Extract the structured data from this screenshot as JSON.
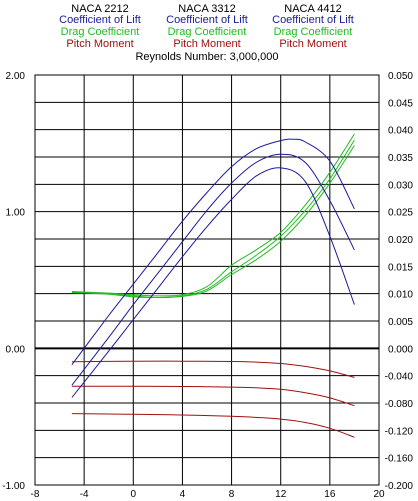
{
  "chart_data": {
    "type": "line",
    "subtitle": "Reynolds Number: 3,000,000",
    "legend_groups": [
      {
        "name": "NACA 2212",
        "entries": [
          "Coefficient of Lift",
          "Drag Coefficient",
          "Pitch Moment"
        ]
      },
      {
        "name": "NACA 3312",
        "entries": [
          "Coefficient of Lift",
          "Drag Coefficient",
          "Pitch Moment"
        ]
      },
      {
        "name": "NACA 4412",
        "entries": [
          "Coefficient of Lift",
          "Drag Coefficient",
          "Pitch Moment"
        ]
      }
    ],
    "colors": {
      "lift": "#1a1a9c",
      "drag": "#22bb22",
      "moment": "#a01010"
    },
    "x_axis": {
      "range": [
        -8,
        20
      ],
      "ticks": [
        "-8",
        "-4",
        "0",
        "4",
        "8",
        "12",
        "16",
        "20"
      ]
    },
    "y_left": {
      "range": [
        -1.0,
        2.0
      ],
      "ticks": [
        "2.00",
        "1.00",
        "0.00",
        "-1.00"
      ]
    },
    "y_right_top": {
      "range": [
        0,
        0.05
      ],
      "ticks": [
        "0.050",
        "0.045",
        "0.040",
        "0.035",
        "0.030",
        "0.025",
        "0.020",
        "0.015",
        "0.010",
        "0.005",
        "0.000"
      ]
    },
    "y_right_bottom": {
      "range": [
        -0.2,
        0
      ],
      "ticks": [
        "-0.040",
        "-0.080",
        "-0.120",
        "-0.160",
        "-0.200"
      ]
    },
    "lift_series": [
      {
        "group": "NACA 2212",
        "x": [
          -5,
          -2,
          0,
          2,
          4,
          6,
          8,
          10,
          12,
          14,
          16,
          18
        ],
        "y": [
          -0.36,
          -0.02,
          0.21,
          0.44,
          0.67,
          0.89,
          1.09,
          1.26,
          1.32,
          1.22,
          0.82,
          0.32
        ]
      },
      {
        "group": "NACA 3312",
        "x": [
          -5,
          -2,
          0,
          2,
          4,
          6,
          8,
          10,
          12,
          14,
          16,
          18
        ],
        "y": [
          -0.27,
          0.08,
          0.32,
          0.55,
          0.78,
          1.01,
          1.21,
          1.36,
          1.42,
          1.36,
          1.08,
          0.72
        ]
      },
      {
        "group": "NACA 4412",
        "x": [
          -5,
          -2,
          0,
          2,
          4,
          6,
          8,
          10,
          12,
          13,
          14,
          16,
          18
        ],
        "y": [
          -0.12,
          0.24,
          0.47,
          0.7,
          0.93,
          1.14,
          1.33,
          1.46,
          1.52,
          1.53,
          1.51,
          1.37,
          1.02
        ]
      }
    ],
    "drag_series": [
      {
        "group": "NACA 2212",
        "x": [
          -5,
          -2,
          0,
          2,
          4,
          6,
          8,
          10,
          12,
          14,
          16,
          18
        ],
        "y": [
          0.0102,
          0.0099,
          0.0094,
          0.0093,
          0.0095,
          0.0105,
          0.0135,
          0.0162,
          0.0196,
          0.0243,
          0.0302,
          0.0371
        ]
      },
      {
        "group": "NACA 3312",
        "x": [
          -5,
          -2,
          0,
          2,
          4,
          6,
          8,
          10,
          12,
          14,
          16,
          18
        ],
        "y": [
          0.0103,
          0.01,
          0.0096,
          0.0093,
          0.0096,
          0.0108,
          0.014,
          0.017,
          0.0205,
          0.0252,
          0.031,
          0.0381
        ]
      },
      {
        "group": "NACA 4412",
        "x": [
          -5,
          -2,
          0,
          2,
          4,
          6,
          8,
          10,
          12,
          14,
          16,
          18
        ],
        "y": [
          0.0104,
          0.0101,
          0.0098,
          0.0096,
          0.0098,
          0.0113,
          0.0152,
          0.018,
          0.0212,
          0.0262,
          0.0322,
          0.0392
        ]
      }
    ],
    "moment_series": [
      {
        "group": "NACA 2212",
        "x": [
          -5,
          0,
          4,
          8,
          10,
          12,
          14,
          16,
          18
        ],
        "y": [
          -0.0195,
          -0.0188,
          -0.0188,
          -0.0192,
          -0.0202,
          -0.0222,
          -0.0265,
          -0.033,
          -0.0425
        ]
      },
      {
        "group": "NACA 3312",
        "x": [
          -5,
          0,
          4,
          8,
          10,
          12,
          14,
          16,
          18
        ],
        "y": [
          -0.0555,
          -0.0555,
          -0.0558,
          -0.0568,
          -0.0578,
          -0.06,
          -0.065,
          -0.0725,
          -0.084
        ]
      },
      {
        "group": "NACA 4412",
        "x": [
          -5,
          0,
          4,
          8,
          10,
          12,
          14,
          16,
          18
        ],
        "y": [
          -0.0955,
          -0.0965,
          -0.0975,
          -0.0995,
          -0.101,
          -0.1035,
          -0.1085,
          -0.117,
          -0.13
        ]
      }
    ]
  }
}
